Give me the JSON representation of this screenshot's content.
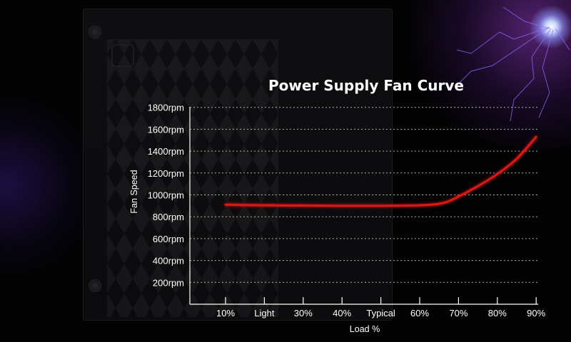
{
  "colors": {
    "background": "#020203",
    "line": "#e01818",
    "line_glow": "#ff3030",
    "grid": "#d8d8d8",
    "text": "#ffffff"
  },
  "chart_data": {
    "type": "line",
    "title": "Power Supply Fan Curve",
    "xlabel": "Load %",
    "ylabel": "Fan Speed",
    "categories": [
      "10%",
      "Light",
      "30%",
      "40%",
      "Typical",
      "60%",
      "70%",
      "80%",
      "90%"
    ],
    "y_ticks": [
      "200rpm",
      "400rpm",
      "600rpm",
      "800rpm",
      "1000rpm",
      "1200rpm",
      "1400rpm",
      "1600rpm",
      "1800rpm"
    ],
    "y_tick_values": [
      200,
      400,
      600,
      800,
      1000,
      1200,
      1400,
      1600,
      1800
    ],
    "ylim": [
      0,
      1800
    ],
    "grid": "horizontal dotted",
    "series": [
      {
        "values": [
          [
            1.0,
            910
          ],
          [
            2.0,
            905
          ],
          [
            3.0,
            902
          ],
          [
            4.0,
            900
          ],
          [
            5.0,
            900
          ],
          [
            6.0,
            905
          ],
          [
            6.6,
            925
          ],
          [
            7.0,
            985
          ],
          [
            7.5,
            1080
          ],
          [
            8.0,
            1190
          ],
          [
            8.5,
            1330
          ],
          [
            9.0,
            1530
          ]
        ]
      }
    ]
  }
}
